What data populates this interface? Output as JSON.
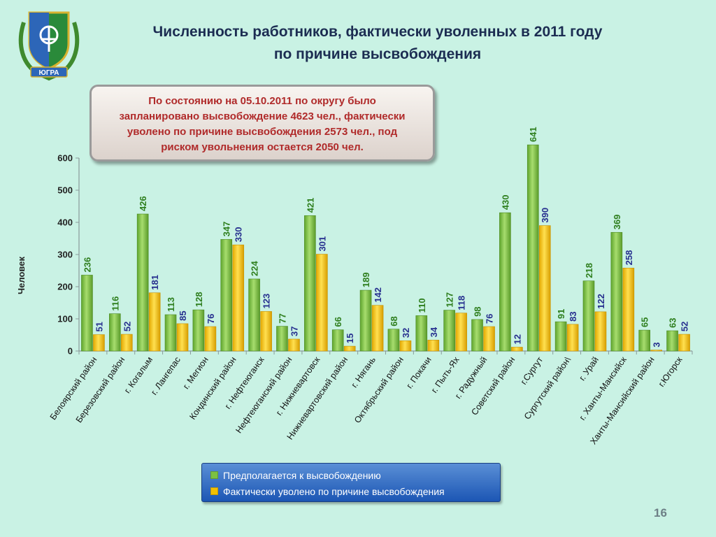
{
  "title": {
    "line1": "Численность работников, фактически уволенных в 2011 году",
    "line2": "по причине высвобождения"
  },
  "emblem_label": "ЮГРА",
  "note": {
    "line1": "По состоянию на 05.10.2011 по округу было",
    "line2": "запланировано высвобождение  4623 чел., фактически",
    "line3": "уволено по причине высвобождения 2573 чел., под",
    "line4": "риском увольнения остается  2050 чел."
  },
  "legend": {
    "planned": "Предполагается к высвобождению",
    "actual": "Фактически уволено по причине высвобождения"
  },
  "page_number": "16",
  "colors": {
    "planned": "#7cc142",
    "planned_label": "#2f7f1e",
    "actual": "#f3c000",
    "actual_label": "#27308f"
  },
  "chart_data": {
    "type": "bar",
    "ylabel": "Человек",
    "ylim": [
      0,
      600
    ],
    "yticks": [
      0,
      100,
      200,
      300,
      400,
      500,
      600
    ],
    "grid": false,
    "legend_position": "bottom",
    "categories": [
      "Белоярский район",
      "Березовский район",
      "г. Когалым",
      "г. Лангепас",
      "г. Мегион",
      "Кондинский район",
      "г. Нефтеюганск",
      "Нефтеюганский район",
      "г. Нижневартовск",
      "Нижневартовский район",
      "г. Нягань",
      "Октябрьский район",
      "г. Покачи",
      "г. Пыть-Ях",
      "г. Радужный",
      "Советский район",
      "г.Сургут",
      "Сургутский район\\",
      "г. Урай",
      "г. Ханты-Мансийск",
      "Ханты-Мансийский район",
      "г.Югорск"
    ],
    "series": [
      {
        "name": "Предполагается к высвобождению",
        "values": [
          236,
          116,
          426,
          113,
          128,
          347,
          224,
          77,
          421,
          66,
          189,
          68,
          110,
          127,
          98,
          430,
          641,
          91,
          218,
          369,
          65,
          63
        ]
      },
      {
        "name": "Фактически уволено по причине высвобождения",
        "values": [
          51,
          52,
          181,
          85,
          76,
          330,
          123,
          37,
          301,
          15,
          142,
          32,
          34,
          118,
          76,
          12,
          390,
          83,
          122,
          258,
          3,
          52
        ]
      }
    ]
  }
}
